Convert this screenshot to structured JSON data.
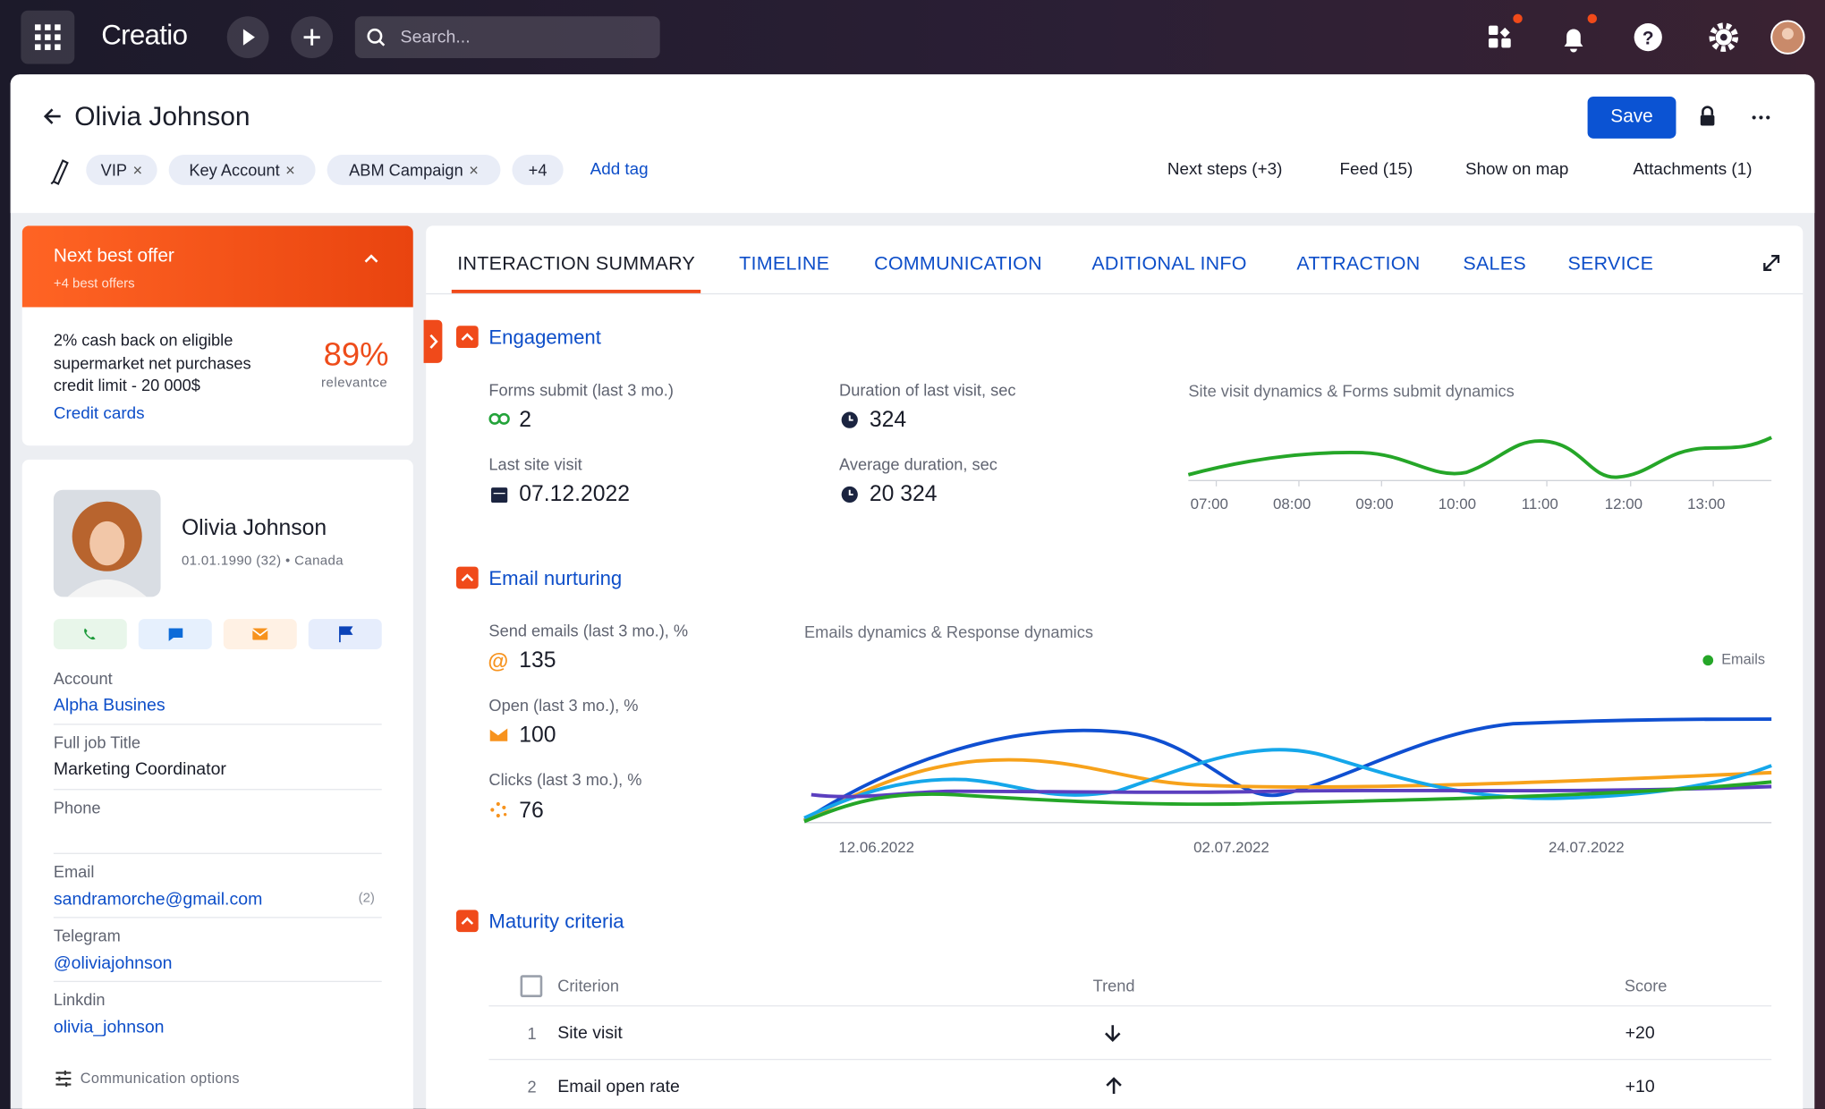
{
  "top_bar": {
    "brand": "Creatio",
    "search_placeholder": "Search..."
  },
  "header": {
    "title": "Olivia Johnson",
    "save": "Save",
    "tags": [
      "VIP",
      "Key Account",
      "ABM Campaign",
      "+4"
    ],
    "add_tag": "Add tag",
    "links": [
      "Next steps (+3)",
      "Feed (15)",
      "Show on map",
      "Attachments (1)"
    ]
  },
  "offer": {
    "title": "Next best offer",
    "subtitle": "+4 best offers",
    "text_lines": [
      "2% cash back on eligible",
      "supermarket net purchases",
      "credit limit - 20 000$"
    ],
    "percent": "89%",
    "percent_label": "relevantce",
    "link": "Credit cards"
  },
  "profile": {
    "name": "Olivia Johnson",
    "meta": "01.01.1990 (32) • Canada",
    "fields": [
      {
        "label": "Account",
        "value": "Alpha Busines"
      },
      {
        "label": "Full job Title",
        "value": "Marketing Coordinator"
      },
      {
        "label": "Phone"
      },
      {
        "label": "Email",
        "value": "sandramorche@gmail.com",
        "count": "(2)"
      },
      {
        "label": "Telegram",
        "value": "@oliviajohnson"
      },
      {
        "label": "Linkdin",
        "value": "olivia_johnson"
      }
    ],
    "communication_options": "Communication options"
  },
  "tabs": [
    "INTERACTION SUMMARY",
    "TIMELINE",
    "COMMUNICATION",
    "ADITIONAL INFO",
    "ATTRACTION",
    "SALES",
    "SERVICE"
  ],
  "engagement": {
    "title": "Engagement",
    "metrics": [
      {
        "label": "Forms submit (last 3 mo.)",
        "value": "2"
      },
      {
        "label": "Duration of last visit, sec",
        "value": "324"
      },
      {
        "label": "Last site visit",
        "value": "07.12.2022"
      },
      {
        "label": "Average duration, sec",
        "value": "20 324"
      }
    ],
    "chart_title": "Site visit dynamics & Forms submit dynamics",
    "x_labels": [
      "07:00",
      "08:00",
      "09:00",
      "10:00",
      "11:00",
      "12:00",
      "13:00"
    ]
  },
  "email_nurturing": {
    "title": "Email nurturing",
    "metrics": [
      {
        "label": "Send emails (last 3 mo.), %",
        "value": "135"
      },
      {
        "label": "Open (last 3 mo.), %",
        "value": "100"
      },
      {
        "label": "Clicks (last 3 mo.), %",
        "value": "76"
      }
    ],
    "chart_title": "Emails dynamics & Response dynamics",
    "legend": "Emails",
    "x_labels": [
      "12.06.2022",
      "02.07.2022",
      "24.07.2022"
    ]
  },
  "maturity": {
    "title": "Maturity criteria",
    "columns": [
      "Criterion",
      "Trend",
      "Score"
    ],
    "rows": [
      [
        "1",
        "Site visit",
        "+20"
      ],
      [
        "2",
        "Email open rate",
        "+10"
      ]
    ]
  }
}
